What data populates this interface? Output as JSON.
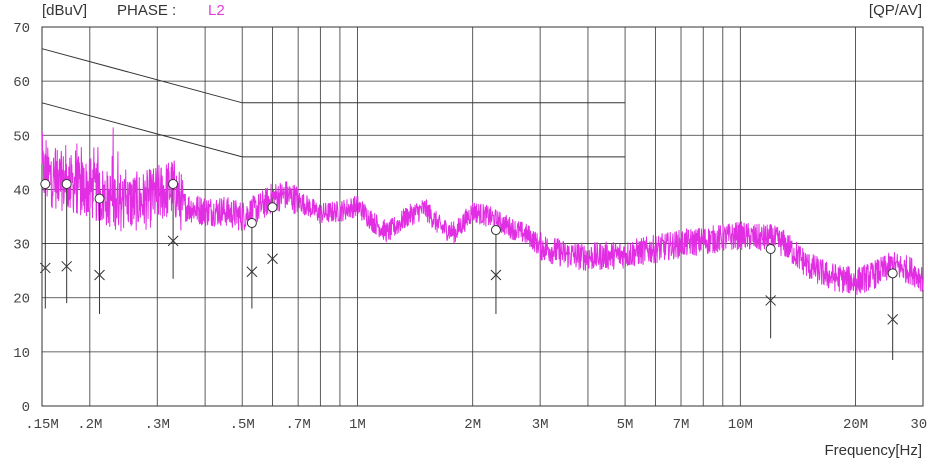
{
  "header": {
    "unit_label": "[dBuV]",
    "phase_label": "PHASE :",
    "phase_value": "L2",
    "mode_label": "[QP/AV]",
    "xlabel": "Frequency[Hz]"
  },
  "colors": {
    "trace": "#e12ee3",
    "grid": "#333333",
    "marker": "#333333"
  },
  "chart_data": {
    "type": "line",
    "title": "",
    "xlabel": "Frequency[Hz]",
    "ylabel": "[dBuV]",
    "x_scale": "log",
    "xlim": [
      0.15,
      30
    ],
    "ylim": [
      0,
      70
    ],
    "grid": true,
    "x_tick_values": [
      0.15,
      0.2,
      0.3,
      0.5,
      0.7,
      1,
      2,
      3,
      5,
      7,
      10,
      20,
      30
    ],
    "x_tick_labels": [
      ".15M",
      ".2M",
      ".3M",
      ".5M",
      ".7M",
      "1M",
      "2M",
      "3M",
      "5M",
      "7M",
      "10M",
      "20M",
      "30M"
    ],
    "x_minor_grid": [
      0.4,
      0.6,
      0.8,
      0.9,
      4,
      6,
      8,
      9
    ],
    "y_ticks": [
      0,
      10,
      20,
      30,
      40,
      50,
      60,
      70
    ],
    "limit_lines": [
      {
        "type": "QP",
        "points": [
          [
            0.15,
            66
          ],
          [
            0.5,
            56
          ],
          [
            5,
            56
          ]
        ]
      },
      {
        "type": "AV",
        "points": [
          [
            0.15,
            56
          ],
          [
            0.5,
            46
          ],
          [
            5,
            46
          ]
        ]
      }
    ],
    "series": [
      {
        "points": [
          [
            0.15,
            43
          ],
          [
            0.16,
            42
          ],
          [
            0.18,
            41
          ],
          [
            0.2,
            40
          ],
          [
            0.22,
            38.5
          ],
          [
            0.25,
            37.5
          ],
          [
            0.28,
            38
          ],
          [
            0.3,
            39
          ],
          [
            0.33,
            40.5
          ],
          [
            0.35,
            37
          ],
          [
            0.4,
            36
          ],
          [
            0.45,
            36
          ],
          [
            0.5,
            35
          ],
          [
            0.55,
            36.5
          ],
          [
            0.6,
            38.5
          ],
          [
            0.65,
            39
          ],
          [
            0.7,
            38
          ],
          [
            0.8,
            35.5
          ],
          [
            0.9,
            36
          ],
          [
            1.0,
            37
          ],
          [
            1.1,
            34
          ],
          [
            1.2,
            32
          ],
          [
            1.35,
            35
          ],
          [
            1.5,
            36.5
          ],
          [
            1.65,
            33
          ],
          [
            1.8,
            32
          ],
          [
            2.0,
            36
          ],
          [
            2.2,
            35
          ],
          [
            2.5,
            33
          ],
          [
            2.8,
            31.5
          ],
          [
            3.0,
            29.5
          ],
          [
            3.5,
            28
          ],
          [
            4.0,
            27.5
          ],
          [
            5.0,
            28
          ],
          [
            6.0,
            29
          ],
          [
            7.0,
            30
          ],
          [
            8.0,
            30.5
          ],
          [
            9.0,
            31
          ],
          [
            10.0,
            31.5
          ],
          [
            11.0,
            31
          ],
          [
            12.0,
            31
          ],
          [
            13.0,
            30
          ],
          [
            14.0,
            28
          ],
          [
            15.0,
            26
          ],
          [
            17.0,
            24
          ],
          [
            20.0,
            23
          ],
          [
            22.0,
            24
          ],
          [
            25.0,
            26
          ],
          [
            28.0,
            25
          ],
          [
            30.0,
            23.5
          ]
        ]
      }
    ],
    "qp_markers": [
      [
        0.153,
        41
      ],
      [
        0.174,
        41
      ],
      [
        0.212,
        38.3
      ],
      [
        0.33,
        41
      ],
      [
        0.53,
        33.8
      ],
      [
        0.6,
        36.7
      ],
      [
        2.3,
        32.5
      ],
      [
        12.0,
        29
      ],
      [
        25.0,
        24.5
      ]
    ],
    "av_markers": [
      [
        0.153,
        25.5
      ],
      [
        0.174,
        25.8
      ],
      [
        0.212,
        24.2
      ],
      [
        0.33,
        30.5
      ],
      [
        0.53,
        24.8
      ],
      [
        0.6,
        27.2
      ],
      [
        2.3,
        24.2
      ],
      [
        12.0,
        19.5
      ],
      [
        25.0,
        16
      ]
    ],
    "marker_stems": [
      [
        0.153,
        18
      ],
      [
        0.174,
        19
      ],
      [
        0.212,
        17
      ],
      [
        0.33,
        23.5
      ],
      [
        0.53,
        18
      ],
      [
        0.6,
        20
      ],
      [
        2.3,
        17
      ],
      [
        12.0,
        12.5
      ],
      [
        25.0,
        8.5
      ]
    ]
  }
}
